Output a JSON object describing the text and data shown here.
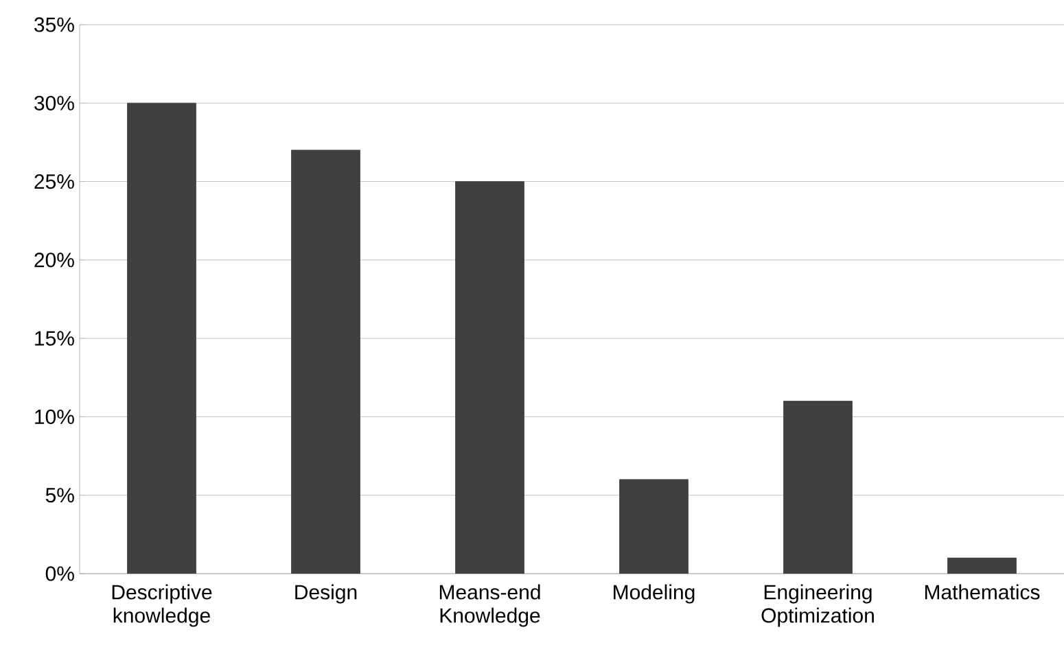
{
  "chart_data": {
    "type": "bar",
    "categories": [
      "Descriptive knowledge",
      "Design",
      "Means-end Knowledge",
      "Modeling",
      "Engineering Optimization",
      "Mathematics"
    ],
    "values": [
      30,
      27,
      25,
      6,
      11,
      1
    ],
    "color": "#404040",
    "ylim": [
      0,
      35
    ],
    "yticks": [
      {
        "value": 0,
        "label": "0%"
      },
      {
        "value": 5,
        "label": "5%"
      },
      {
        "value": 10,
        "label": "10%"
      },
      {
        "value": 15,
        "label": "15%"
      },
      {
        "value": 20,
        "label": "20%"
      },
      {
        "value": 25,
        "label": "25%"
      },
      {
        "value": 30,
        "label": "30%"
      },
      {
        "value": 35,
        "label": "35%"
      }
    ],
    "grid": "y"
  }
}
